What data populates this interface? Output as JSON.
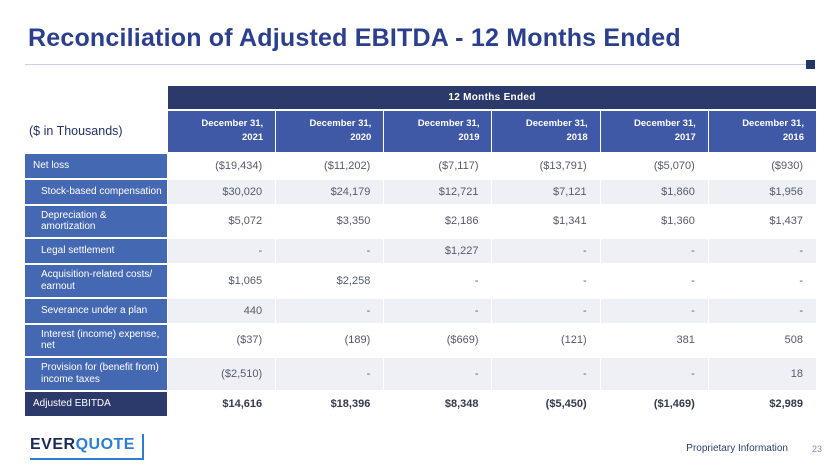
{
  "title": "Reconciliation of Adjusted EBITDA - 12 Months Ended",
  "units_label": "($ in Thousands)",
  "table": {
    "span_header": "12 Months Ended",
    "columns": [
      {
        "line1": "December 31,",
        "line2": "2021"
      },
      {
        "line1": "December 31,",
        "line2": "2020"
      },
      {
        "line1": "December 31,",
        "line2": "2019"
      },
      {
        "line1": "December 31,",
        "line2": "2018"
      },
      {
        "line1": "December 31,",
        "line2": "2017"
      },
      {
        "line1": "December 31,",
        "line2": "2016"
      }
    ],
    "rows": [
      {
        "label": "Net loss",
        "values": [
          "($19,434)",
          "($11,202)",
          "($7,117)",
          "($13,791)",
          "($5,070)",
          "($930)"
        ]
      },
      {
        "label": "Stock-based compensation",
        "values": [
          "$30,020",
          "$24,179",
          "$12,721",
          "$7,121",
          "$1,860",
          "$1,956"
        ]
      },
      {
        "label": "Depreciation & amortization",
        "values": [
          "$5,072",
          "$3,350",
          "$2,186",
          "$1,341",
          "$1,360",
          "$1,437"
        ]
      },
      {
        "label": "Legal settlement",
        "values": [
          "-",
          "-",
          "$1,227",
          "-",
          "-",
          "-"
        ]
      },
      {
        "label": "Acquisition-related costs/ earnout",
        "values": [
          "$1,065",
          "$2,258",
          "-",
          "-",
          "-",
          "-"
        ]
      },
      {
        "label": "Severance under a plan",
        "values": [
          "440",
          "-",
          "-",
          "-",
          "-",
          "-"
        ]
      },
      {
        "label": "Interest (income) expense, net",
        "values": [
          "($37)",
          "(189)",
          "($669)",
          "(121)",
          "381",
          "508"
        ]
      },
      {
        "label": "Provision for (benefit from) income taxes",
        "values": [
          "($2,510)",
          "-",
          "-",
          "-",
          "-",
          "18"
        ]
      },
      {
        "label": "Adjusted EBITDA",
        "values": [
          "$14,616",
          "$18,396",
          "$8,348",
          "($5,450)",
          "($1,469)",
          "$2,989"
        ]
      }
    ]
  },
  "footer": {
    "logo_ever": "EVER",
    "logo_quote": "QUOTE",
    "proprietary": "Proprietary Information",
    "page": "23"
  },
  "colors": {
    "title": "#2b3f8c",
    "navy": "#2c3a6b",
    "header_blue": "#4059a6",
    "label_blue": "#4568b2",
    "alt_row": "#eef0f5",
    "value_text": "#545b6b",
    "logo_blue": "#2d7dd2"
  }
}
